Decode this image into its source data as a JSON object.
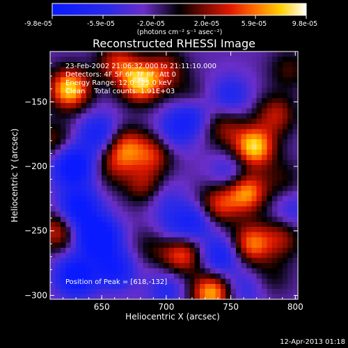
{
  "chart_data": {
    "type": "heatmap",
    "title": "Reconstructed RHESSI Image",
    "xlabel": "Heliocentric X (arcsec)",
    "ylabel": "Heliocentric Y (arcsec)",
    "xlim": [
      610,
      802
    ],
    "ylim": [
      -303,
      -111
    ],
    "x_ticks": [
      "650",
      "700",
      "750",
      "800"
    ],
    "y_ticks": [
      "-150",
      "-200",
      "-250",
      "-300"
    ],
    "colorbar": {
      "ticks": [
        "-9.8e-05",
        "-5.9e-05",
        "-2.0e-05",
        "2.0e-05",
        "5.9e-05",
        "9.8e-05"
      ],
      "unit": "(photons cm⁻² s⁻¹ asec⁻²)",
      "range": [
        -9.8e-05,
        9.8e-05
      ],
      "colormap": "rainbow-like: blue-purple-black-red-orange-yellow-white"
    },
    "annotations": [
      "23-Feb-2002 21:06:32.000 to 21:11:10.000",
      "Detectors: 4F 5F 6F 7F 8F, Att 0",
      "Energy Range: 12.0 - 25.0 keV",
      "Clean    Total counts: 1.91E+03"
    ],
    "peak_label": "Position of Peak = [618,-132]",
    "grid": false,
    "blobs": [
      {
        "x": 625,
        "y": -140,
        "v": 1.0
      },
      {
        "x": 662,
        "y": -120,
        "v": 0.55
      },
      {
        "x": 680,
        "y": -135,
        "v": 0.95
      },
      {
        "x": 700,
        "y": -125,
        "v": 0.45
      },
      {
        "x": 612,
        "y": -180,
        "v": 0.35
      },
      {
        "x": 648,
        "y": -175,
        "v": -0.55
      },
      {
        "x": 628,
        "y": -200,
        "v": -0.85
      },
      {
        "x": 660,
        "y": -200,
        "v": 0.35
      },
      {
        "x": 668,
        "y": -185,
        "v": 0.65
      },
      {
        "x": 690,
        "y": -190,
        "v": 0.55
      },
      {
        "x": 705,
        "y": -175,
        "v": -0.35
      },
      {
        "x": 718,
        "y": -160,
        "v": -0.6
      },
      {
        "x": 718,
        "y": -150,
        "v": 0.35
      },
      {
        "x": 745,
        "y": -170,
        "v": 0.4
      },
      {
        "x": 768,
        "y": -185,
        "v": 1.0
      },
      {
        "x": 785,
        "y": -160,
        "v": 0.5
      },
      {
        "x": 790,
        "y": -210,
        "v": 0.25
      },
      {
        "x": 750,
        "y": -205,
        "v": -0.35
      },
      {
        "x": 762,
        "y": -220,
        "v": 0.85
      },
      {
        "x": 740,
        "y": -230,
        "v": 0.6
      },
      {
        "x": 722,
        "y": -243,
        "v": -0.5
      },
      {
        "x": 698,
        "y": -225,
        "v": -0.25
      },
      {
        "x": 683,
        "y": -215,
        "v": 0.45
      },
      {
        "x": 705,
        "y": -250,
        "v": -0.3
      },
      {
        "x": 632,
        "y": -232,
        "v": -0.75
      },
      {
        "x": 647,
        "y": -255,
        "v": -1.0
      },
      {
        "x": 660,
        "y": -280,
        "v": -0.6
      },
      {
        "x": 630,
        "y": -285,
        "v": -0.8
      },
      {
        "x": 615,
        "y": -250,
        "v": 0.55
      },
      {
        "x": 690,
        "y": -262,
        "v": 0.25
      },
      {
        "x": 712,
        "y": -268,
        "v": 0.7
      },
      {
        "x": 742,
        "y": -270,
        "v": -0.55
      },
      {
        "x": 766,
        "y": -260,
        "v": 0.75
      },
      {
        "x": 790,
        "y": -255,
        "v": 0.45
      },
      {
        "x": 782,
        "y": -285,
        "v": 0.2
      },
      {
        "x": 760,
        "y": -295,
        "v": -0.3
      },
      {
        "x": 735,
        "y": -298,
        "v": 0.9
      },
      {
        "x": 700,
        "y": -295,
        "v": -0.35
      },
      {
        "x": 798,
        "y": -235,
        "v": -0.3
      },
      {
        "x": 750,
        "y": -145,
        "v": -0.4
      },
      {
        "x": 795,
        "y": -125,
        "v": 0.3
      }
    ]
  },
  "footer": {
    "timestamp": "12-Apr-2013 01:18"
  },
  "colors": {
    "background": "#000000",
    "text": "#ffffff"
  }
}
